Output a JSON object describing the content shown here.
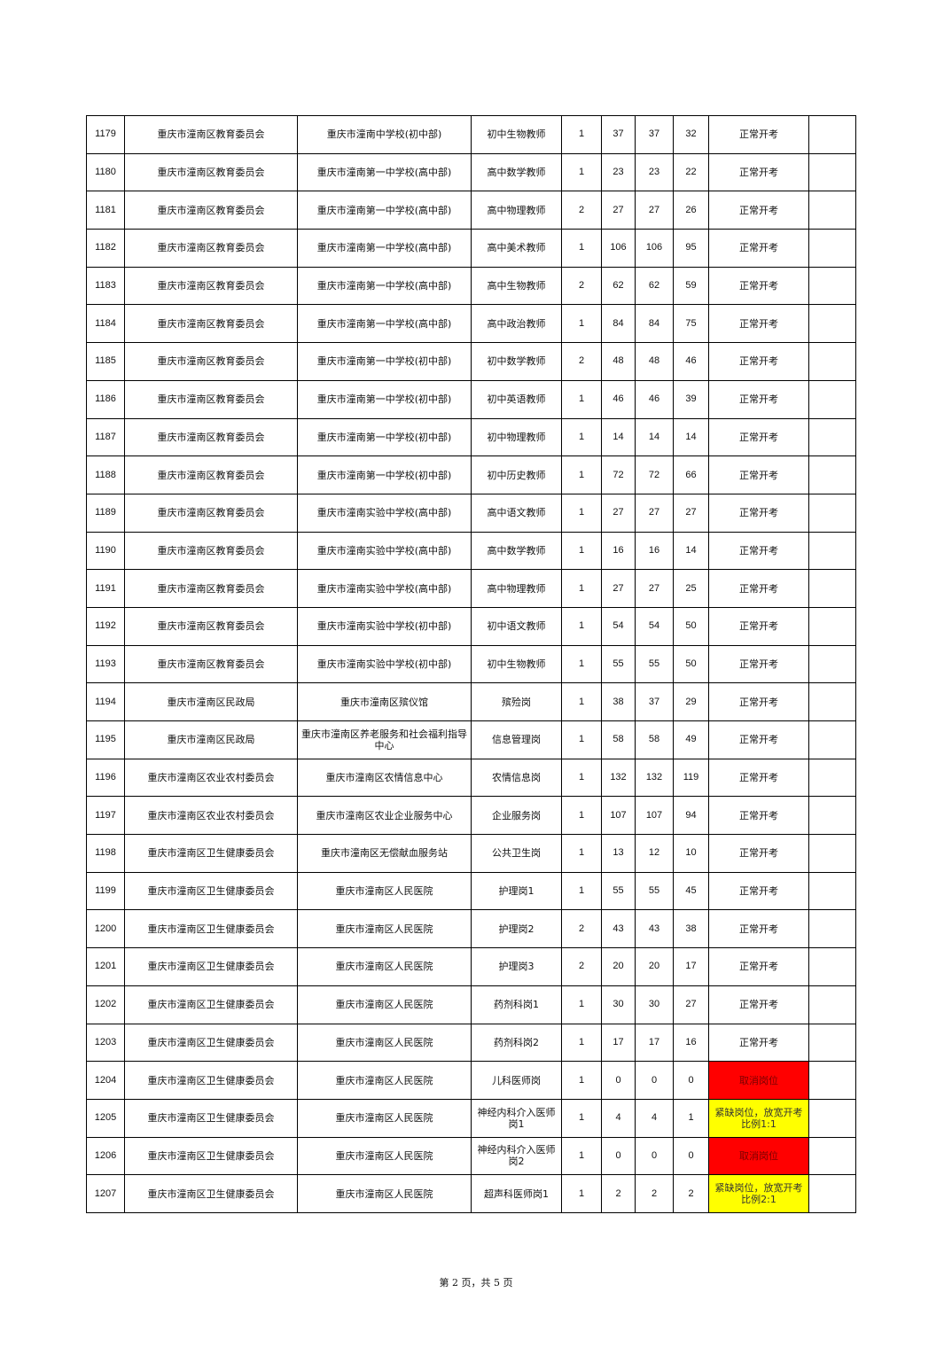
{
  "status_colors": {
    "cancelled": "#ff0000",
    "relaxed": "#ffff00"
  },
  "rows": [
    [
      "1179",
      "重庆市潼南区教育委员会",
      "重庆市潼南中学校(初中部)",
      "初中生物教师",
      "1",
      "37",
      "37",
      "32",
      "正常开考",
      ""
    ],
    [
      "1180",
      "重庆市潼南区教育委员会",
      "重庆市潼南第一中学校(高中部)",
      "高中数学教师",
      "1",
      "23",
      "23",
      "22",
      "正常开考",
      ""
    ],
    [
      "1181",
      "重庆市潼南区教育委员会",
      "重庆市潼南第一中学校(高中部)",
      "高中物理教师",
      "2",
      "27",
      "27",
      "26",
      "正常开考",
      ""
    ],
    [
      "1182",
      "重庆市潼南区教育委员会",
      "重庆市潼南第一中学校(高中部)",
      "高中美术教师",
      "1",
      "106",
      "106",
      "95",
      "正常开考",
      ""
    ],
    [
      "1183",
      "重庆市潼南区教育委员会",
      "重庆市潼南第一中学校(高中部)",
      "高中生物教师",
      "2",
      "62",
      "62",
      "59",
      "正常开考",
      ""
    ],
    [
      "1184",
      "重庆市潼南区教育委员会",
      "重庆市潼南第一中学校(高中部)",
      "高中政治教师",
      "1",
      "84",
      "84",
      "75",
      "正常开考",
      ""
    ],
    [
      "1185",
      "重庆市潼南区教育委员会",
      "重庆市潼南第一中学校(初中部)",
      "初中数学教师",
      "2",
      "48",
      "48",
      "46",
      "正常开考",
      ""
    ],
    [
      "1186",
      "重庆市潼南区教育委员会",
      "重庆市潼南第一中学校(初中部)",
      "初中英语教师",
      "1",
      "46",
      "46",
      "39",
      "正常开考",
      ""
    ],
    [
      "1187",
      "重庆市潼南区教育委员会",
      "重庆市潼南第一中学校(初中部)",
      "初中物理教师",
      "1",
      "14",
      "14",
      "14",
      "正常开考",
      ""
    ],
    [
      "1188",
      "重庆市潼南区教育委员会",
      "重庆市潼南第一中学校(初中部)",
      "初中历史教师",
      "1",
      "72",
      "72",
      "66",
      "正常开考",
      ""
    ],
    [
      "1189",
      "重庆市潼南区教育委员会",
      "重庆市潼南实验中学校(高中部)",
      "高中语文教师",
      "1",
      "27",
      "27",
      "27",
      "正常开考",
      ""
    ],
    [
      "1190",
      "重庆市潼南区教育委员会",
      "重庆市潼南实验中学校(高中部)",
      "高中数学教师",
      "1",
      "16",
      "16",
      "14",
      "正常开考",
      ""
    ],
    [
      "1191",
      "重庆市潼南区教育委员会",
      "重庆市潼南实验中学校(高中部)",
      "高中物理教师",
      "1",
      "27",
      "27",
      "25",
      "正常开考",
      ""
    ],
    [
      "1192",
      "重庆市潼南区教育委员会",
      "重庆市潼南实验中学校(初中部)",
      "初中语文教师",
      "1",
      "54",
      "54",
      "50",
      "正常开考",
      ""
    ],
    [
      "1193",
      "重庆市潼南区教育委员会",
      "重庆市潼南实验中学校(初中部)",
      "初中生物教师",
      "1",
      "55",
      "55",
      "50",
      "正常开考",
      ""
    ],
    [
      "1194",
      "重庆市潼南区民政局",
      "重庆市潼南区殡仪馆",
      "殡殓岗",
      "1",
      "38",
      "37",
      "29",
      "正常开考",
      ""
    ],
    [
      "1195",
      "重庆市潼南区民政局",
      "重庆市潼南区养老服务和社会福利指导中心",
      "信息管理岗",
      "1",
      "58",
      "58",
      "49",
      "正常开考",
      ""
    ],
    [
      "1196",
      "重庆市潼南区农业农村委员会",
      "重庆市潼南区农情信息中心",
      "农情信息岗",
      "1",
      "132",
      "132",
      "119",
      "正常开考",
      ""
    ],
    [
      "1197",
      "重庆市潼南区农业农村委员会",
      "重庆市潼南区农业企业服务中心",
      "企业服务岗",
      "1",
      "107",
      "107",
      "94",
      "正常开考",
      ""
    ],
    [
      "1198",
      "重庆市潼南区卫生健康委员会",
      "重庆市潼南区无偿献血服务站",
      "公共卫生岗",
      "1",
      "13",
      "12",
      "10",
      "正常开考",
      ""
    ],
    [
      "1199",
      "重庆市潼南区卫生健康委员会",
      "重庆市潼南区人民医院",
      "护理岗1",
      "1",
      "55",
      "55",
      "45",
      "正常开考",
      ""
    ],
    [
      "1200",
      "重庆市潼南区卫生健康委员会",
      "重庆市潼南区人民医院",
      "护理岗2",
      "2",
      "43",
      "43",
      "38",
      "正常开考",
      ""
    ],
    [
      "1201",
      "重庆市潼南区卫生健康委员会",
      "重庆市潼南区人民医院",
      "护理岗3",
      "2",
      "20",
      "20",
      "17",
      "正常开考",
      ""
    ],
    [
      "1202",
      "重庆市潼南区卫生健康委员会",
      "重庆市潼南区人民医院",
      "药剂科岗1",
      "1",
      "30",
      "30",
      "27",
      "正常开考",
      ""
    ],
    [
      "1203",
      "重庆市潼南区卫生健康委员会",
      "重庆市潼南区人民医院",
      "药剂科岗2",
      "1",
      "17",
      "17",
      "16",
      "正常开考",
      ""
    ],
    [
      "1204",
      "重庆市潼南区卫生健康委员会",
      "重庆市潼南区人民医院",
      "儿科医师岗",
      "1",
      "0",
      "0",
      "0",
      "取消岗位",
      ""
    ],
    [
      "1205",
      "重庆市潼南区卫生健康委员会",
      "重庆市潼南区人民医院",
      "神经内科介入医师岗1",
      "1",
      "4",
      "4",
      "1",
      "紧缺岗位，放宽开考比例1:1",
      ""
    ],
    [
      "1206",
      "重庆市潼南区卫生健康委员会",
      "重庆市潼南区人民医院",
      "神经内科介入医师岗2",
      "1",
      "0",
      "0",
      "0",
      "取消岗位",
      ""
    ],
    [
      "1207",
      "重庆市潼南区卫生健康委员会",
      "重庆市潼南区人民医院",
      "超声科医师岗1",
      "1",
      "2",
      "2",
      "2",
      "紧缺岗位，放宽开考比例2:1",
      ""
    ]
  ],
  "footer": "第 2 页，共 5 页"
}
